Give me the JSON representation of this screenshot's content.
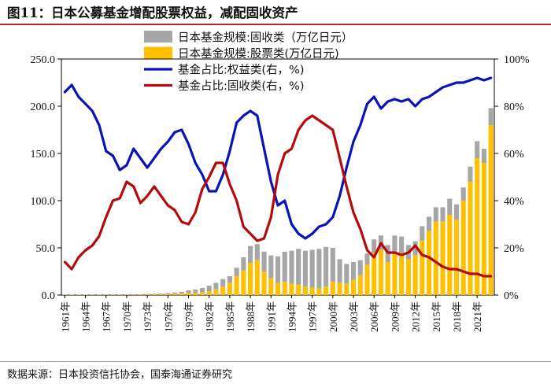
{
  "header": {
    "title": "图11：日本公募基金增配股票权益，减配固收资产"
  },
  "footer": {
    "source": "数据来源：日本投资信托协会，国泰海通证券研究"
  },
  "colors": {
    "fixed_bar": "#a6a6a6",
    "equity_bar": "#ffc000",
    "equity_line": "#0a14b4",
    "fixed_line": "#b40a0a",
    "title_rule": "#b8252c"
  },
  "chart_data": {
    "type": "bar+line",
    "title": "",
    "x": [
      1961,
      1962,
      1963,
      1964,
      1965,
      1966,
      1967,
      1968,
      1969,
      1970,
      1971,
      1972,
      1973,
      1974,
      1975,
      1976,
      1977,
      1978,
      1979,
      1980,
      1981,
      1982,
      1983,
      1984,
      1985,
      1986,
      1987,
      1988,
      1989,
      1990,
      1991,
      1992,
      1993,
      1994,
      1995,
      1996,
      1997,
      1998,
      1999,
      2000,
      2001,
      2002,
      2003,
      2004,
      2005,
      2006,
      2007,
      2008,
      2009,
      2010,
      2011,
      2012,
      2013,
      2014,
      2015,
      2016,
      2017,
      2018,
      2019,
      2020,
      2021,
      2022,
      2023
    ],
    "x_tick_labels": [
      "1961年",
      "1964年",
      "1967年",
      "1970年",
      "1973年",
      "1976年",
      "1979年",
      "1982年",
      "1985年",
      "1988年",
      "1991年",
      "1994年",
      "1997年",
      "2000年",
      "2003年",
      "2006年",
      "2009年",
      "2012年",
      "2015年",
      "2018年",
      "2021年"
    ],
    "left_axis": {
      "min": 0,
      "max": 250,
      "ticks": [
        "0.0",
        "50.0",
        "100.0",
        "150.0",
        "200.0",
        "250.0"
      ]
    },
    "right_axis": {
      "min": 0,
      "max": 100,
      "ticks": [
        "0%",
        "20%",
        "40%",
        "60%",
        "80%",
        "100%"
      ]
    },
    "bar_series": [
      {
        "name": "日本基金规模:股票类(万亿日元)",
        "axis": "left",
        "stack_order": 1,
        "values": [
          0.3,
          0.35,
          0.3,
          0.3,
          0.25,
          0.3,
          0.3,
          0.35,
          0.5,
          0.45,
          0.55,
          0.7,
          0.8,
          0.8,
          1.0,
          1.3,
          1.6,
          2,
          2.5,
          2.5,
          3,
          4,
          6,
          9,
          13,
          20,
          26,
          34,
          37,
          25,
          18,
          13,
          14,
          12,
          11,
          9,
          8,
          7,
          9,
          14,
          13,
          12,
          16,
          21,
          32,
          45,
          48,
          35,
          45,
          45,
          38,
          42,
          58,
          68,
          78,
          78,
          85,
          80,
          100,
          120,
          145,
          140,
          180
        ]
      },
      {
        "name": "日本基金规模:固收类（万亿日元）",
        "axis": "left",
        "stack_order": 2,
        "values": [
          0.1,
          0.1,
          0.1,
          0.1,
          0.1,
          0.15,
          0.2,
          0.2,
          0.2,
          0.3,
          0.3,
          0.3,
          0.4,
          0.6,
          0.7,
          0.9,
          1.2,
          1.5,
          2.5,
          3.5,
          4.5,
          6,
          7,
          8,
          7,
          9,
          14,
          18,
          17,
          21,
          24,
          28,
          32,
          35,
          38,
          38,
          40,
          42,
          42,
          36,
          25,
          21,
          19,
          16,
          12,
          14,
          15,
          18,
          18,
          17,
          15,
          15,
          15,
          15,
          15,
          15,
          17,
          16,
          14,
          16,
          18,
          15,
          18
        ]
      }
    ],
    "line_series": [
      {
        "name": "基金占比:权益类(右，%)",
        "axis": "right",
        "values": [
          86,
          89,
          84,
          81,
          78,
          72,
          61,
          59,
          53,
          55,
          62,
          58,
          54,
          58,
          62,
          65,
          69,
          70,
          64,
          56,
          51,
          44,
          44,
          51,
          61,
          73,
          76,
          78,
          76,
          62,
          48,
          38,
          40,
          30,
          26,
          24,
          26,
          29,
          30,
          33,
          42,
          54,
          65,
          72,
          81,
          84,
          79,
          82,
          83,
          82,
          83,
          80,
          83,
          84,
          86,
          88,
          89,
          90,
          90,
          91,
          92,
          91,
          92
        ]
      },
      {
        "name": "基金占比:固收类(右，%)",
        "axis": "right",
        "values": [
          14,
          11,
          16,
          19,
          21,
          25,
          33,
          40,
          41,
          48,
          46,
          39,
          42,
          46,
          42,
          38,
          36,
          31,
          30,
          35,
          45,
          50,
          56,
          56,
          47,
          40,
          29,
          26,
          23,
          24,
          33,
          51,
          60,
          62,
          70,
          74,
          76,
          74,
          72,
          70,
          58,
          46,
          35,
          28,
          19,
          16,
          22,
          18,
          18,
          17,
          18,
          21,
          17,
          16,
          14,
          12,
          11,
          11,
          10,
          9,
          9,
          8,
          8
        ]
      }
    ],
    "legend": {
      "placement": "top-center",
      "entries": [
        {
          "label": "日本基金规模:固收类（万亿日元）",
          "kind": "bar",
          "color": "#a6a6a6"
        },
        {
          "label": "日本基金规模:股票类(万亿日元)",
          "kind": "bar",
          "color": "#ffc000"
        },
        {
          "label": "基金占比:权益类(右，%)",
          "kind": "line",
          "color": "#0a14b4"
        },
        {
          "label": "基金占比:固收类(右，%)",
          "kind": "line",
          "color": "#b40a0a"
        }
      ]
    },
    "grid": false
  }
}
